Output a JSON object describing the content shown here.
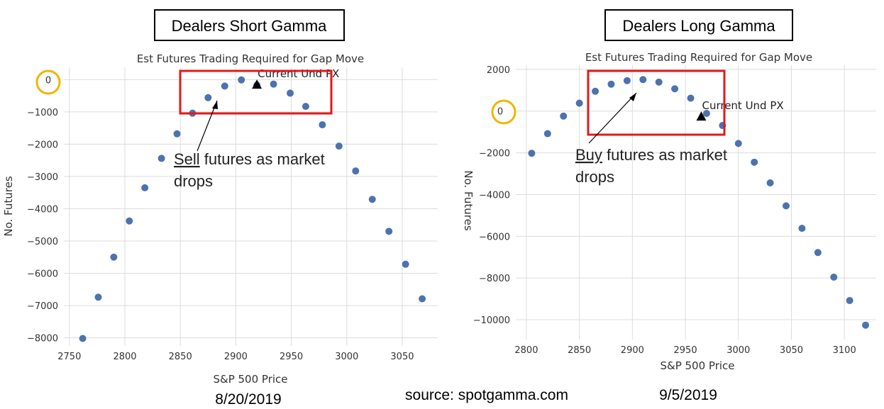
{
  "left_box_label": "Dealers Short Gamma",
  "right_box_label": "Dealers Long Gamma",
  "left_date": "8/20/2019",
  "right_date": "9/5/2019",
  "source": "source: spotgamma.com",
  "zero_highlight": "0",
  "chart_data": [
    {
      "type": "scatter",
      "title": "Est Futures Trading Required for Gap Move",
      "xlabel": "S&P 500 Price",
      "ylabel": "No. Futures",
      "xlim": [
        2745,
        3082
      ],
      "ylim": [
        -8250,
        380
      ],
      "xticks": [
        2750,
        2800,
        2850,
        2900,
        2950,
        3000,
        3050
      ],
      "yticks": [
        0,
        -1000,
        -2000,
        -3000,
        -4000,
        -5000,
        -6000,
        -7000,
        -8000
      ],
      "grid": true,
      "x": [
        2762,
        2776,
        2790,
        2804,
        2818,
        2833,
        2847,
        2861,
        2875,
        2890,
        2905,
        2919,
        2934,
        2949,
        2963,
        2978,
        2993,
        3008,
        3023,
        3038,
        3053,
        3068
      ],
      "y": [
        -8020,
        -6740,
        -5500,
        -4380,
        -3350,
        -2440,
        -1680,
        -1040,
        -560,
        -200,
        -10,
        -170,
        -140,
        -420,
        -830,
        -1400,
        -2060,
        -2830,
        -3710,
        -4700,
        -5720,
        -6790
      ],
      "marker": {
        "label": "Current Und PX",
        "x": 2919,
        "y": -150
      },
      "annotation": {
        "underlined": "Sell",
        "text": " futures as market",
        "text2": "drops"
      }
    },
    {
      "type": "scatter",
      "title": "Est Futures Trading Required for Gap Move",
      "xlabel": "S&P 500 Price",
      "ylabel": "No. Futures",
      "xlim": [
        2790,
        3130
      ],
      "ylim": [
        -10950,
        2200
      ],
      "xticks": [
        2800,
        2850,
        2900,
        2950,
        3000,
        3050,
        3100
      ],
      "yticks": [
        2000,
        0,
        -2000,
        -4000,
        -6000,
        -8000,
        -10000
      ],
      "grid": true,
      "x": [
        2805,
        2820,
        2835,
        2850,
        2865,
        2880,
        2895,
        2910,
        2925,
        2940,
        2955,
        2970,
        2985,
        3000,
        3015,
        3030,
        3045,
        3060,
        3075,
        3090,
        3105,
        3120
      ],
      "y": [
        -2020,
        -1080,
        -240,
        380,
        950,
        1290,
        1460,
        1510,
        1390,
        1070,
        620,
        -110,
        -690,
        -1550,
        -2450,
        -3440,
        -4540,
        -5620,
        -6780,
        -7960,
        -9080,
        -10260
      ],
      "marker": {
        "label": "Current Und PX",
        "x": 2965,
        "y": -250
      },
      "annotation": {
        "underlined": "Buy",
        "text": " futures as market",
        "text2": "drops"
      }
    }
  ]
}
